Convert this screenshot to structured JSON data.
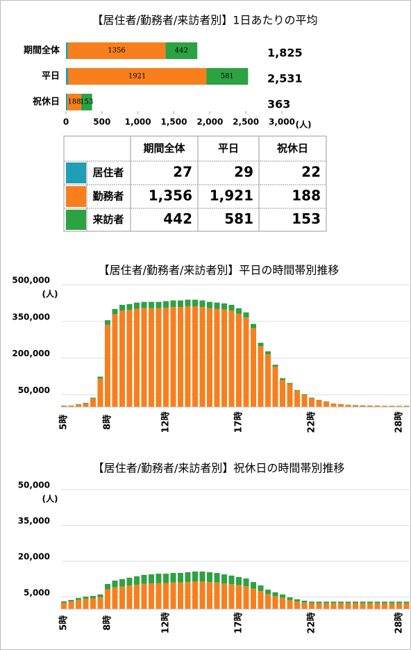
{
  "chart_data": [
    {
      "type": "hbar",
      "title": "【居住者/勤務者/来訪者別】1日あたりの平均",
      "categories": [
        "期間全体",
        "平日",
        "祝休日"
      ],
      "series": [
        {
          "color": "#1f9fb4",
          "values": [
            27,
            29,
            22
          ]
        },
        {
          "color": "#f77f1e",
          "values": [
            1356,
            1921,
            188
          ],
          "data_labels": true
        },
        {
          "color": "#2ca243",
          "values": [
            442,
            581,
            153
          ],
          "data_labels": true
        }
      ],
      "total_labels": [
        "1,825",
        "2,531",
        "363"
      ],
      "xlim": [
        0,
        3000
      ],
      "xticks": [
        0,
        500,
        {
          "value": 1000,
          "label": "1,000"
        },
        {
          "value": 1500,
          "label": "1,500"
        },
        {
          "value": 2000,
          "label": "2,000"
        },
        {
          "value": 2500,
          "label": "2,500"
        },
        {
          "value": 3000,
          "label": "3,000"
        }
      ],
      "x_unit": "(人)"
    },
    {
      "type": "stacked_bar",
      "title": "【居住者/勤務者/来訪者別】平日の時間帯別推移",
      "categories": [
        "5時",
        null,
        null,
        null,
        null,
        null,
        "8時",
        null,
        null,
        null,
        null,
        null,
        null,
        null,
        "12時",
        null,
        null,
        null,
        null,
        null,
        null,
        null,
        null,
        null,
        "17時",
        null,
        null,
        null,
        null,
        null,
        null,
        null,
        null,
        null,
        "22時",
        null,
        null,
        null,
        null,
        null,
        null,
        null,
        null,
        null,
        null,
        null,
        "28時",
        null
      ],
      "series": [
        {
          "color": "#1f9fb4",
          "values": [
            500,
            500,
            500,
            500,
            600,
            700,
            800,
            800,
            800,
            800,
            800,
            800,
            800,
            800,
            800,
            800,
            800,
            800,
            800,
            800,
            800,
            800,
            800,
            800,
            800,
            800,
            800,
            700,
            700,
            700,
            700,
            600,
            600,
            600,
            600,
            600,
            600,
            500,
            500,
            500,
            500,
            500,
            500,
            500,
            500,
            500,
            500,
            500
          ]
        },
        {
          "color": "#f77f1e",
          "values": [
            4500,
            4500,
            10000,
            14500,
            34000,
            115000,
            335000,
            378000,
            394000,
            396000,
            401000,
            403000,
            403000,
            403000,
            405000,
            408000,
            408000,
            411000,
            411000,
            408000,
            403000,
            400000,
            398000,
            393000,
            380000,
            365000,
            321000,
            248000,
            215000,
            163000,
            110000,
            92000,
            64000,
            48000,
            35000,
            26500,
            21000,
            12500,
            10700,
            7800,
            6800,
            5900,
            5000,
            5000,
            4000,
            4000,
            4000,
            4000
          ]
        },
        {
          "color": "#2ca243",
          "values": [
            1000,
            1000,
            1500,
            2000,
            3400,
            8300,
            19000,
            22000,
            23000,
            24000,
            25000,
            26000,
            26000,
            26000,
            27000,
            27000,
            27000,
            27000,
            27000,
            27000,
            26000,
            26000,
            25000,
            24000,
            23000,
            21000,
            18000,
            14000,
            12000,
            9000,
            7000,
            5400,
            4400,
            3400,
            2400,
            1900,
            1400,
            1000,
            800,
            700,
            700,
            600,
            500,
            500,
            500,
            500,
            500,
            500
          ]
        }
      ],
      "ylim": [
        0,
        500000
      ],
      "yticks": [
        {
          "value": 50000,
          "label": "50,000"
        },
        {
          "value": 200000,
          "label": "200,000"
        },
        {
          "value": 350000,
          "label": "350,000"
        },
        {
          "value": 500000,
          "label": "500,000"
        }
      ],
      "y_unit": "(人)",
      "grid": true
    },
    {
      "type": "stacked_bar",
      "title": "【居住者/勤務者/来訪者別】祝休日の時間帯別推移",
      "categories": [
        "5時",
        null,
        null,
        null,
        null,
        null,
        "8時",
        null,
        null,
        null,
        null,
        null,
        null,
        null,
        "12時",
        null,
        null,
        null,
        null,
        null,
        null,
        null,
        null,
        null,
        "17時",
        null,
        null,
        null,
        null,
        null,
        null,
        null,
        null,
        null,
        "22時",
        null,
        null,
        null,
        null,
        null,
        null,
        null,
        null,
        null,
        null,
        null,
        "28時",
        null
      ],
      "series": [
        {
          "color": "#1f9fb4",
          "values": [
            100,
            100,
            100,
            100,
            100,
            100,
            100,
            100,
            100,
            100,
            100,
            100,
            100,
            100,
            100,
            100,
            100,
            100,
            100,
            100,
            100,
            100,
            100,
            100,
            100,
            100,
            100,
            100,
            100,
            100,
            100,
            100,
            100,
            100,
            100,
            100,
            100,
            100,
            100,
            100,
            100,
            100,
            100,
            100,
            100,
            100,
            100,
            100
          ]
        },
        {
          "color": "#f77f1e",
          "values": [
            2500,
            3000,
            3700,
            4200,
            4400,
            4900,
            8100,
            9000,
            9300,
            9700,
            10100,
            10500,
            10600,
            10800,
            10800,
            11000,
            11000,
            11200,
            11400,
            11400,
            11200,
            11000,
            10600,
            10300,
            9900,
            9500,
            8400,
            7400,
            6100,
            5300,
            4600,
            3700,
            3100,
            2600,
            2300,
            2300,
            2300,
            2300,
            2300,
            2300,
            2300,
            2300,
            2300,
            2300,
            2300,
            2300,
            2300,
            2300
          ]
        },
        {
          "color": "#2ca243",
          "values": [
            600,
            700,
            800,
            900,
            1000,
            1100,
            2300,
            2800,
            3100,
            3300,
            3500,
            3700,
            3800,
            3900,
            3900,
            4000,
            4000,
            4100,
            4200,
            4200,
            4100,
            4000,
            3800,
            3600,
            3400,
            3200,
            2800,
            2400,
            1900,
            1600,
            1400,
            1100,
            900,
            800,
            700,
            700,
            700,
            700,
            700,
            700,
            700,
            700,
            700,
            700,
            700,
            700,
            700,
            700
          ]
        }
      ],
      "ylim": [
        0,
        50000
      ],
      "yticks": [
        {
          "value": 5000,
          "label": "5,000"
        },
        {
          "value": 20000,
          "label": "20,000"
        },
        {
          "value": 35000,
          "label": "35,000"
        },
        {
          "value": 50000,
          "label": "50,000"
        }
      ],
      "y_unit": "(人)",
      "grid": true
    }
  ],
  "table": {
    "header": [
      "期間全体",
      "平日",
      "祝休日"
    ],
    "rows": [
      {
        "label": "居住者",
        "cells": [
          "27",
          "29",
          "22"
        ]
      },
      {
        "label": "勤務者",
        "cells": [
          "1,356",
          "1,921",
          "188"
        ]
      },
      {
        "label": "来訪者",
        "cells": [
          "442",
          "581",
          "153"
        ]
      }
    ]
  }
}
